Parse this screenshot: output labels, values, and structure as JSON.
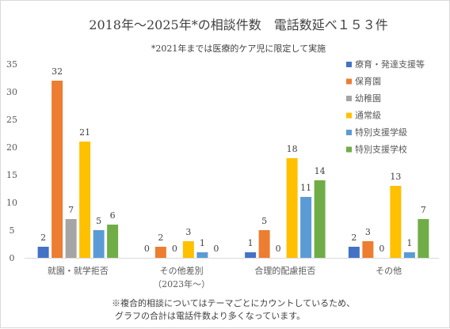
{
  "chart_data": {
    "type": "bar",
    "title": "2018年～2025年*の相談件数　電話数延べ１５３件",
    "subtitle": "*2021年までは医療的ケア児に限定して実施",
    "categories": [
      {
        "line1": "就園・就学拒否",
        "line2": ""
      },
      {
        "line1": "その他差別",
        "line2": "（2023年～）"
      },
      {
        "line1": "合理的配慮拒否",
        "line2": ""
      },
      {
        "line1": "その他",
        "line2": ""
      }
    ],
    "series": [
      {
        "name": "療育・発達支援等",
        "color": "#4472c4",
        "values": [
          2,
          0,
          1,
          2
        ]
      },
      {
        "name": "保育園",
        "color": "#ed7d31",
        "values": [
          32,
          2,
          5,
          3
        ]
      },
      {
        "name": "幼稚園",
        "color": "#a5a5a5",
        "values": [
          7,
          0,
          0,
          0
        ]
      },
      {
        "name": "通常級",
        "color": "#ffc000",
        "values": [
          21,
          3,
          18,
          13
        ]
      },
      {
        "name": "特別支援学級",
        "color": "#5b9bd5",
        "values": [
          5,
          1,
          11,
          1
        ]
      },
      {
        "name": "特別支援学校",
        "color": "#70ad47",
        "values": [
          6,
          0,
          14,
          7
        ]
      }
    ],
    "ylim": [
      0,
      35
    ],
    "yticks": [
      "0",
      "5",
      "10",
      "15",
      "20",
      "25",
      "30",
      "35"
    ],
    "grid": false,
    "legend_position": "right"
  },
  "note": {
    "line1": "※複合的相談についてはテーマごとにカウントしているため、",
    "line2": "グラフの合計は電話件数より多くなっています。"
  }
}
